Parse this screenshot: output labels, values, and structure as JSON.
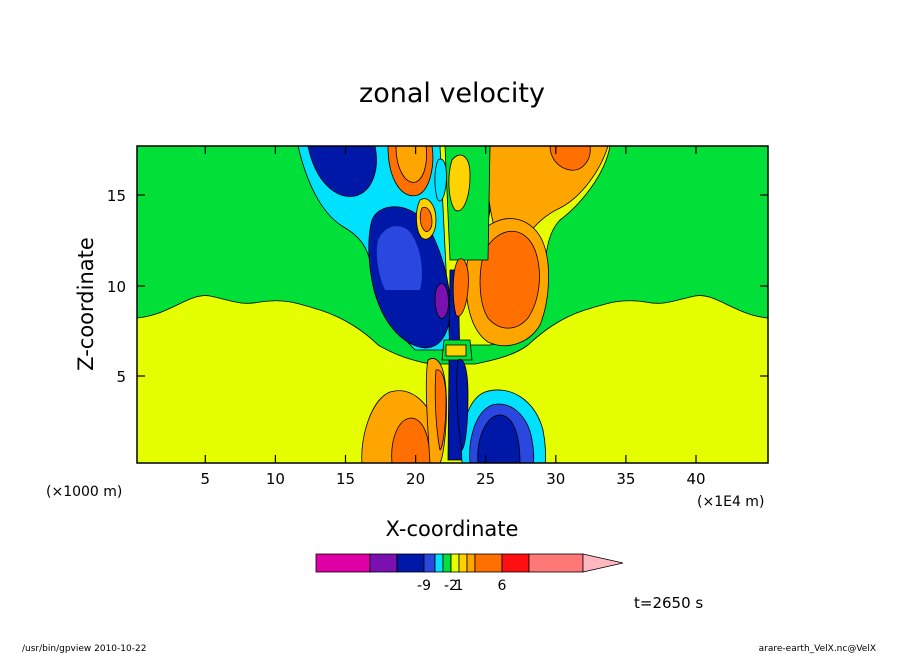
{
  "chart_data": {
    "type": "heatmap",
    "title": "zonal velocity",
    "xlabel": "X-coordinate",
    "ylabel": "Z-coordinate",
    "x_unit_left": "(×1000 m)",
    "x_unit_right": "(×1E4 m)",
    "xlim": [
      0,
      45
    ],
    "ylim": [
      0,
      17.5
    ],
    "xticks": [
      "5",
      "10",
      "15",
      "20",
      "25",
      "30",
      "35",
      "40"
    ],
    "yticks": [
      "5",
      "10",
      "15"
    ],
    "colorbar": {
      "colors": [
        "#e000a8",
        "#7a10b0",
        "#0018a8",
        "#2a48e0",
        "#00e0ff",
        "#00e038",
        "#e6ff00",
        "#ffd200",
        "#ffa500",
        "#ff7000",
        "#ff1010",
        "#ff7878",
        "#ffb8c0"
      ],
      "labels": [
        {
          "value": "-9",
          "index": 2
        },
        {
          "value": "-2",
          "index": 5
        },
        {
          "value": "1",
          "index": 6
        },
        {
          "value": "6",
          "index": 9
        }
      ]
    },
    "time_label": "t=2650 s",
    "footer_left": "/usr/bin/gpview  2010-10-22",
    "footer_right": "arare-earth_VelX.nc@VelX"
  }
}
